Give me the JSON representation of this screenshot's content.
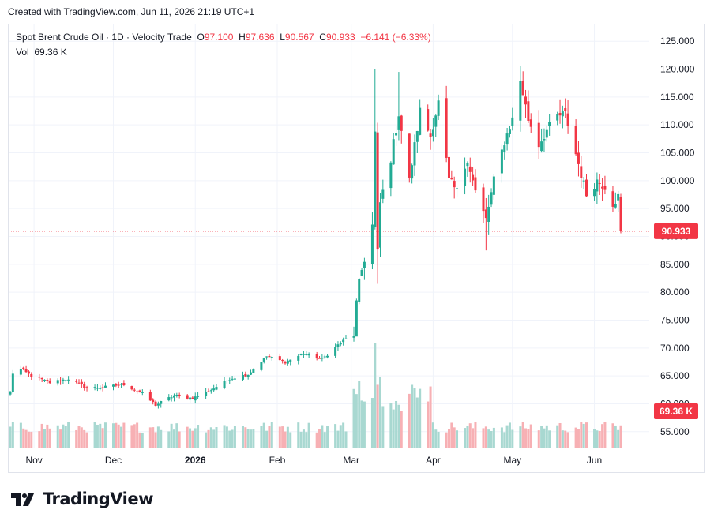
{
  "header": {
    "created": "Created with TradingView.com, Jun 11, 2026 21:19 UTC+1"
  },
  "legend": {
    "symbol": "Spot Brent Crude Oil · 1D · Velocity Trade",
    "o_label": "O",
    "o_value": "97.100",
    "h_label": "H",
    "h_value": "97.636",
    "l_label": "L",
    "l_value": "90.567",
    "c_label": "C",
    "c_value": "90.933",
    "change": "−6.141 (−6.33%)",
    "vol_label": "Vol",
    "vol_value": "69.36 K"
  },
  "branding": {
    "name": "TradingView"
  },
  "colors": {
    "up": "#22ab94",
    "down": "#f23645",
    "vol_up": "#a8d8d1",
    "vol_down": "#f7b0b4",
    "grid": "#f0f3fa",
    "axis_text": "#131722"
  },
  "chart_data": {
    "type": "candlestick",
    "ylim": [
      52,
      128
    ],
    "y_ticks": [
      55,
      60,
      65,
      70,
      75,
      80,
      85,
      90,
      95,
      100,
      105,
      110,
      115,
      120,
      125
    ],
    "y_tick_labels": [
      "55.000",
      "60.000",
      "65.000",
      "70.000",
      "75.000",
      "80.000",
      "85.000",
      "90.000",
      "95.000",
      "100.000",
      "105.000",
      "110.000",
      "115.000",
      "120.000",
      "125.000"
    ],
    "x_ticks": [
      {
        "label": "Nov",
        "bold": false,
        "date": "2025-11-01"
      },
      {
        "label": "Dec",
        "bold": false,
        "date": "2025-12-01"
      },
      {
        "label": "2026",
        "bold": true,
        "date": "2026-01-01"
      },
      {
        "label": "Feb",
        "bold": false,
        "date": "2026-02-01"
      },
      {
        "label": "Mar",
        "bold": false,
        "date": "2026-03-01"
      },
      {
        "label": "Apr",
        "bold": false,
        "date": "2026-04-01"
      },
      {
        "label": "May",
        "bold": false,
        "date": "2026-05-01"
      },
      {
        "label": "Jun",
        "bold": false,
        "date": "2026-06-01"
      }
    ],
    "last_price": 90.933,
    "last_price_label": "90.933",
    "last_volume_label": "69.36 K",
    "close_anchors": [
      [
        "2025-10-23",
        62.0
      ],
      [
        "2025-10-24",
        65.5
      ],
      [
        "2025-10-27",
        66.2
      ],
      [
        "2025-10-31",
        65.0
      ],
      [
        "2025-11-07",
        63.8
      ],
      [
        "2025-11-14",
        64.5
      ],
      [
        "2025-11-21",
        62.8
      ],
      [
        "2025-11-28",
        63.0
      ],
      [
        "2025-12-05",
        63.5
      ],
      [
        "2025-12-12",
        61.8
      ],
      [
        "2025-12-17",
        59.8
      ],
      [
        "2025-12-24",
        61.5
      ],
      [
        "2025-12-31",
        61.0
      ],
      [
        "2026-01-07",
        62.5
      ],
      [
        "2026-01-14",
        64.5
      ],
      [
        "2026-01-21",
        65.3
      ],
      [
        "2026-01-28",
        68.5
      ],
      [
        "2026-02-04",
        67.5
      ],
      [
        "2026-02-11",
        69.0
      ],
      [
        "2026-02-18",
        68.0
      ],
      [
        "2026-02-25",
        71.0
      ],
      [
        "2026-03-02",
        72.5
      ],
      [
        "2026-03-03",
        78.0
      ],
      [
        "2026-03-04",
        81.5
      ],
      [
        "2026-03-05",
        84.0
      ],
      [
        "2026-03-06",
        86.0
      ],
      [
        "2026-03-09",
        92.0
      ],
      [
        "2026-03-10",
        108.5
      ],
      [
        "2026-03-11",
        87.0
      ],
      [
        "2026-03-12",
        96.0
      ],
      [
        "2026-03-16",
        104.0
      ],
      [
        "2026-03-19",
        112.0
      ],
      [
        "2026-03-23",
        100.0
      ],
      [
        "2026-03-27",
        112.5
      ],
      [
        "2026-03-31",
        108.0
      ],
      [
        "2026-04-03",
        114.0
      ],
      [
        "2026-04-07",
        100.0
      ],
      [
        "2026-04-10",
        98.0
      ],
      [
        "2026-04-14",
        104.0
      ],
      [
        "2026-04-17",
        98.0
      ],
      [
        "2026-04-21",
        93.0
      ],
      [
        "2026-04-24",
        100.0
      ],
      [
        "2026-04-28",
        107.0
      ],
      [
        "2026-05-01",
        111.0
      ],
      [
        "2026-05-04",
        118.0
      ],
      [
        "2026-05-07",
        111.0
      ],
      [
        "2026-05-11",
        106.5
      ],
      [
        "2026-05-14",
        109.0
      ],
      [
        "2026-05-18",
        111.5
      ],
      [
        "2026-05-21",
        112.0
      ],
      [
        "2026-05-26",
        103.0
      ],
      [
        "2026-05-29",
        97.5
      ],
      [
        "2026-06-02",
        100.0
      ],
      [
        "2026-06-05",
        99.0
      ],
      [
        "2026-06-08",
        96.0
      ],
      [
        "2026-06-10",
        97.1
      ],
      [
        "2026-06-11",
        90.933
      ]
    ],
    "volume_scale_hint": "relative heights only; axis not printed"
  }
}
